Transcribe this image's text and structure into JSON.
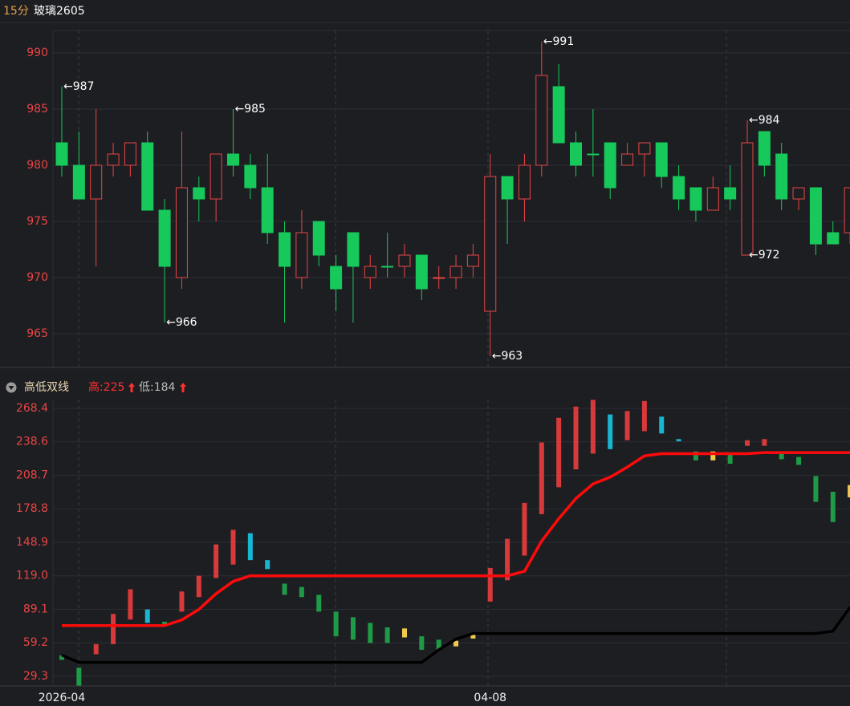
{
  "header": {
    "period": "15分",
    "symbol": "玻璃2605"
  },
  "chart_data": [
    {
      "type": "candlestick",
      "ylim": [
        962,
        992
      ],
      "yticks": [
        965,
        970,
        975,
        980,
        985,
        990
      ],
      "grid": true,
      "palette": {
        "r": "#e84545",
        "g": "#16c95a"
      },
      "open": [
        982,
        980,
        977,
        980,
        980,
        982,
        976,
        970,
        978,
        977,
        981,
        980,
        978,
        974,
        970,
        975,
        971,
        974,
        970,
        971,
        971,
        972,
        970,
        970,
        971,
        967,
        979,
        977,
        980,
        987,
        982,
        981,
        982,
        980,
        981,
        982,
        979,
        978,
        976,
        978,
        972,
        983,
        981,
        977,
        978,
        974,
        974
      ],
      "high": [
        987,
        983,
        985,
        982,
        982,
        983,
        977,
        983,
        979,
        981,
        985,
        981,
        981,
        975,
        976,
        975,
        972,
        974,
        972,
        974,
        973,
        972,
        971,
        972,
        973,
        981,
        979,
        981,
        991,
        989,
        983,
        985,
        982,
        982,
        982,
        982,
        980,
        978,
        979,
        980,
        984,
        983,
        982,
        978,
        978,
        975,
        978
      ],
      "low": [
        979,
        977,
        971,
        979,
        979,
        976,
        966,
        969,
        975,
        975,
        979,
        977,
        973,
        966,
        969,
        971,
        967,
        966,
        969,
        970,
        970,
        968,
        969,
        969,
        970,
        963,
        973,
        975,
        979,
        982,
        979,
        979,
        977,
        980,
        979,
        978,
        976,
        975,
        976,
        976,
        972,
        979,
        976,
        976,
        972,
        973,
        973
      ],
      "close": [
        980,
        977,
        980,
        981,
        982,
        976,
        971,
        978,
        977,
        981,
        980,
        978,
        974,
        971,
        974,
        972,
        969,
        971,
        971,
        971,
        972,
        969,
        970,
        971,
        972,
        979,
        977,
        980,
        988,
        982,
        980,
        981,
        978,
        981,
        982,
        979,
        977,
        976,
        978,
        977,
        982,
        980,
        977,
        978,
        973,
        973,
        978
      ],
      "colors": [
        "g",
        "g",
        "r",
        "r",
        "r",
        "g",
        "g",
        "r",
        "g",
        "r",
        "g",
        "g",
        "g",
        "g",
        "r",
        "g",
        "g",
        "g",
        "r",
        "g",
        "r",
        "g",
        "r",
        "r",
        "r",
        "r",
        "g",
        "r",
        "r",
        "g",
        "g",
        "g",
        "g",
        "r",
        "r",
        "g",
        "g",
        "g",
        "r",
        "g",
        "r",
        "g",
        "g",
        "r",
        "g",
        "g",
        "r"
      ],
      "annotations": [
        {
          "index": 0,
          "value": 987,
          "label": "←987"
        },
        {
          "index": 10,
          "value": 985,
          "label": "←985"
        },
        {
          "index": 6,
          "value": 966,
          "label": "←966"
        },
        {
          "index": 28,
          "value": 991,
          "label": "←991"
        },
        {
          "index": 25,
          "value": 963,
          "label": "←963"
        },
        {
          "index": 40,
          "value": 984,
          "label": "←984"
        },
        {
          "index": 40,
          "value": 972,
          "label": "←972"
        }
      ]
    },
    {
      "type": "range-bar",
      "title": "高低双线",
      "legend": [
        {
          "label": "高:225",
          "color": "#ff3030"
        },
        {
          "label": "低:184",
          "color": "#bbbbbb"
        }
      ],
      "ylim": [
        20.7,
        276.3
      ],
      "yticks": [
        29.3,
        59.2,
        89.1,
        {
          "value": 119,
          "label": "119.0"
        },
        148.9,
        178.8,
        208.7,
        238.6,
        268.4
      ],
      "grid": true,
      "palette": {
        "r": "#d63a3a",
        "g": "#1f9a46",
        "c": "#18b6d2",
        "y": "#f2c94c"
      },
      "categories": [
        "2026-04",
        null,
        null,
        null,
        null,
        null,
        null,
        null,
        null,
        null,
        null,
        null,
        null,
        null,
        null,
        null,
        null,
        null,
        null,
        null,
        null,
        null,
        null,
        null,
        null,
        "04-08",
        null,
        null,
        null,
        null,
        null,
        null,
        null,
        null,
        null,
        null,
        null,
        null,
        null,
        null,
        null,
        null,
        null,
        null,
        null,
        null,
        null
      ],
      "bar_low": [
        44,
        21,
        49,
        58,
        80,
        77,
        74,
        87,
        100,
        117,
        129,
        133,
        125,
        102,
        100,
        87,
        65,
        62,
        59,
        59,
        64,
        53,
        53,
        56,
        63,
        96,
        115,
        137,
        174,
        198,
        214,
        228,
        232,
        240,
        248,
        246,
        239,
        222,
        222,
        219,
        235,
        235,
        223,
        218,
        185,
        167,
        189
      ],
      "bar_high": [
        48,
        37,
        58,
        85,
        107,
        89,
        78,
        105,
        119,
        147,
        160,
        157,
        133,
        112,
        109,
        102,
        87,
        82,
        77,
        73,
        72,
        65,
        62,
        61,
        67,
        126,
        152,
        184,
        238,
        260,
        270,
        276,
        263,
        266,
        275,
        261,
        241,
        230,
        230,
        229,
        240,
        241,
        229,
        225,
        208,
        194,
        200
      ],
      "bar_colors": [
        "g",
        "g",
        "r",
        "r",
        "r",
        "c",
        "g",
        "r",
        "r",
        "r",
        "r",
        "c",
        "c",
        "g",
        "g",
        "g",
        "g",
        "g",
        "g",
        "g",
        "y",
        "g",
        "g",
        "y",
        "y",
        "r",
        "r",
        "r",
        "r",
        "r",
        "r",
        "r",
        "c",
        "r",
        "r",
        "c",
        "c",
        "g",
        "y",
        "g",
        "r",
        "r",
        "g",
        "g",
        "g",
        "g",
        "y"
      ],
      "lines": [
        {
          "color": "#ff0a0a",
          "values": [
            74.6,
            74.6,
            74.6,
            74.6,
            74.6,
            74.6,
            74.6,
            79.6,
            89,
            103,
            114,
            119,
            119,
            119,
            119,
            119,
            119,
            119,
            119,
            119,
            119,
            119,
            119,
            119,
            119,
            119,
            119,
            123,
            150,
            170,
            188,
            201,
            207,
            216,
            226,
            228,
            228,
            228,
            228,
            228,
            228,
            229,
            229,
            229,
            229,
            229,
            229
          ]
        },
        {
          "color": "#000000",
          "values": [
            48.2,
            41.7,
            41.7,
            41.7,
            41.7,
            41.7,
            41.7,
            41.7,
            41.7,
            41.7,
            41.7,
            41.7,
            41.7,
            41.7,
            41.7,
            41.7,
            41.7,
            41.7,
            41.7,
            41.7,
            41.7,
            41.7,
            53,
            62.5,
            67.5,
            67.5,
            67.5,
            67.5,
            67.5,
            67.5,
            67.5,
            67.5,
            67.5,
            67.5,
            67.5,
            67.5,
            67.5,
            67.5,
            67.5,
            67.5,
            67.5,
            67.5,
            67.5,
            67.5,
            67.5,
            69.6,
            91
          ]
        }
      ]
    }
  ]
}
